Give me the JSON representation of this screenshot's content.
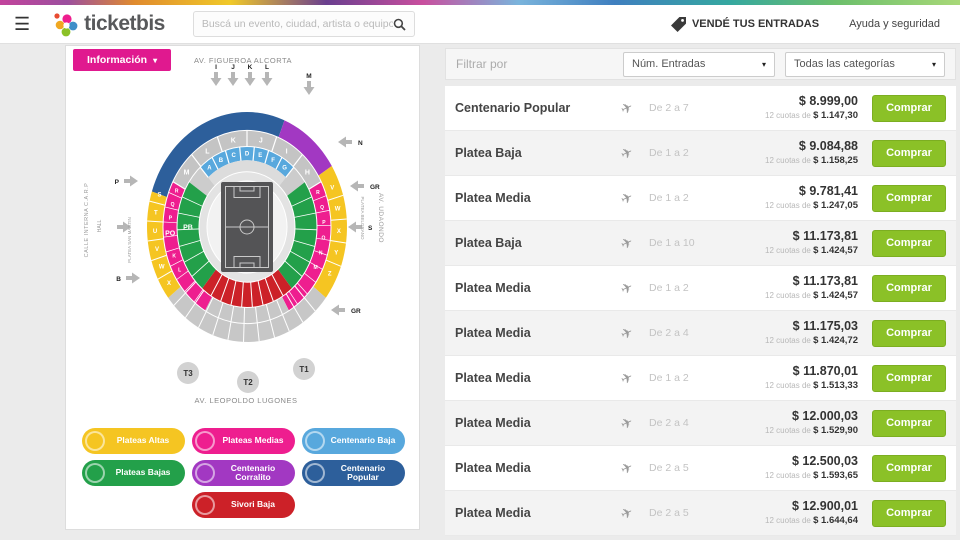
{
  "header": {
    "logo_text": "ticketbis",
    "search_placeholder": "Buscá un evento, ciudad, artista o equipo",
    "sell_link": "VENDÉ TUS ENTRADAS",
    "help_link": "Ayuda y seguridad"
  },
  "map_panel": {
    "info_button": "Información",
    "street_top": "AV. FIGUEROA ALCORTA",
    "street_bottom": "AV. LEOPOLDO LUGONES",
    "street_right": "AV. UDAONDO",
    "label_calle_interna": "CALLE INTERNA C.A.R.P",
    "label_hall": "HALL",
    "label_platea_san_martin": "PLATEA SAN MARTIN",
    "label_platea_belgrano": "PLATEA BELGRANO",
    "gates_top": [
      "I",
      "J",
      "K",
      "L",
      "M"
    ],
    "gates_left": [
      "P",
      "B"
    ],
    "gates_right": [
      "N",
      "GR",
      "S",
      "GR"
    ],
    "towers": [
      "T3",
      "T2",
      "T1"
    ],
    "ring_letters_top": [
      "M",
      "L",
      "K",
      "J",
      "I",
      "H"
    ],
    "ring_letters_cyan": [
      "A",
      "B",
      "C",
      "D",
      "E",
      "F",
      "G"
    ],
    "ring_letters_left_yellow": [
      "S",
      "T",
      "U",
      "V",
      "W",
      "X"
    ],
    "ring_letters_right_yellow": [
      "V",
      "W",
      "X",
      "Y",
      "Z"
    ],
    "pink_left_letters": [
      "R",
      "Q",
      "P",
      "K",
      "L"
    ],
    "pink_right_letters": [
      "R",
      "Q",
      "P",
      "O",
      "N",
      "M"
    ],
    "section_po": "PO",
    "section_pb": "PB",
    "legend": [
      {
        "label": "Plateas Altas",
        "color": "#f5c522"
      },
      {
        "label": "Plateas Medias",
        "color": "#ee1e8f"
      },
      {
        "label": "Centenario Baja",
        "color": "#58a8dd"
      },
      {
        "label": "Plateas Bajas",
        "color": "#23a04a"
      },
      {
        "label": "Centenario Corralito",
        "color": "#a238c2"
      },
      {
        "label": "Centenario Popular",
        "color": "#2d5f9b"
      },
      {
        "label": "Sivori Baja",
        "color": "#cc2128"
      }
    ]
  },
  "filters": {
    "label": "Filtrar por",
    "dropdowns": [
      "Núm. Entradas",
      "Todas las categorías"
    ]
  },
  "tickets": {
    "installments_prefix": "12 cuotas de",
    "buy_label": "Comprar",
    "rows": [
      {
        "category": "Centenario Popular",
        "quantity": "De 2 a 7",
        "price": "$ 8.999,00",
        "installment": "$ 1.147,30"
      },
      {
        "category": "Platea Baja",
        "quantity": "De 1 a 2",
        "price": "$ 9.084,88",
        "installment": "$ 1.158,25"
      },
      {
        "category": "Platea Media",
        "quantity": "De 1 a 2",
        "price": "$ 9.781,41",
        "installment": "$ 1.247,05"
      },
      {
        "category": "Platea Baja",
        "quantity": "De 1 a 10",
        "price": "$ 11.173,81",
        "installment": "$ 1.424,57"
      },
      {
        "category": "Platea Media",
        "quantity": "De 1 a 2",
        "price": "$ 11.173,81",
        "installment": "$ 1.424,57"
      },
      {
        "category": "Platea Media",
        "quantity": "De 2 a 4",
        "price": "$ 11.175,03",
        "installment": "$ 1.424,72"
      },
      {
        "category": "Platea Media",
        "quantity": "De 1 a 2",
        "price": "$ 11.870,01",
        "installment": "$ 1.513,33"
      },
      {
        "category": "Platea Media",
        "quantity": "De 2 a 4",
        "price": "$ 12.000,03",
        "installment": "$ 1.529,90"
      },
      {
        "category": "Platea Media",
        "quantity": "De 2 a 5",
        "price": "$ 12.500,03",
        "installment": "$ 1.593,65"
      },
      {
        "category": "Platea Media",
        "quantity": "De 2 a 5",
        "price": "$ 12.900,01",
        "installment": "$ 1.644,64"
      }
    ]
  }
}
